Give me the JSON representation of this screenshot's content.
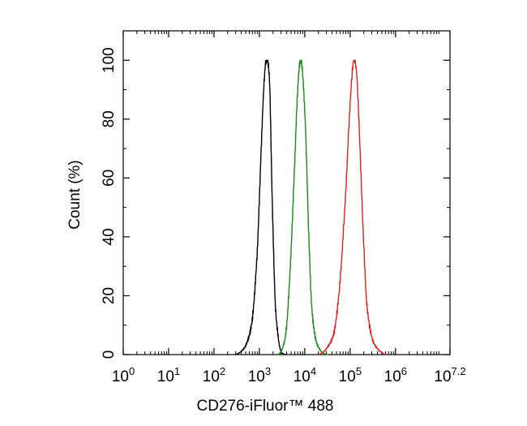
{
  "chart_data": {
    "type": "line",
    "title": "",
    "xlabel": "CD276-iFluor™ 488",
    "ylabel": "Count  (%)",
    "x_scale": "log",
    "xlim": [
      1,
      15848932
    ],
    "ylim": [
      0,
      110
    ],
    "x_ticks": [
      {
        "base": "10",
        "exp": "0"
      },
      {
        "base": "10",
        "exp": "1"
      },
      {
        "base": "10",
        "exp": "2"
      },
      {
        "base": "10",
        "exp": "3"
      },
      {
        "base": "10",
        "exp": "4"
      },
      {
        "base": "10",
        "exp": "5"
      },
      {
        "base": "10",
        "exp": "6"
      },
      {
        "base": "10",
        "exp": "7.2"
      }
    ],
    "y_ticks": [
      "0",
      "20",
      "40",
      "60",
      "80",
      "100"
    ],
    "y_tick_values": [
      0,
      20,
      40,
      60,
      80,
      100
    ],
    "grid": false,
    "legend": "none",
    "series": [
      {
        "color": "#000000",
        "x": [
          300,
          500,
          700,
          900,
          1100,
          1300,
          1500,
          1700,
          1900,
          2200,
          2600,
          3000,
          4000
        ],
        "y": [
          0,
          3,
          12,
          35,
          70,
          95,
          100,
          90,
          55,
          20,
          6,
          1,
          0
        ]
      },
      {
        "color": "#1a8a1a",
        "x": [
          2500,
          3200,
          4000,
          5000,
          6000,
          7000,
          8000,
          9000,
          10500,
          12000,
          14000,
          17000,
          21000,
          26000,
          32000
        ],
        "y": [
          0,
          2,
          10,
          35,
          65,
          90,
          100,
          95,
          75,
          45,
          18,
          6,
          2,
          0.5,
          0
        ]
      },
      {
        "color": "#e02020",
        "x": [
          20000,
          30000,
          45000,
          60000,
          80000,
          100000,
          120000,
          140000,
          160000,
          190000,
          230000,
          300000,
          400000,
          600000
        ],
        "y": [
          0,
          2,
          8,
          25,
          55,
          85,
          100,
          95,
          75,
          45,
          18,
          6,
          2,
          0
        ]
      }
    ]
  }
}
